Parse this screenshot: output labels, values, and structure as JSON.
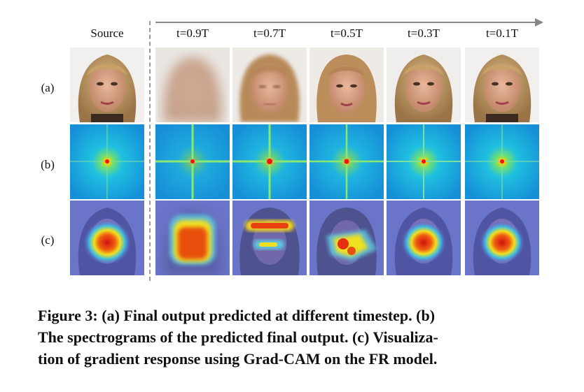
{
  "figure": {
    "column_labels": [
      "Source",
      "t=0.9T",
      "t=0.7T",
      "t=0.5T",
      "t=0.3T",
      "t=0.1T"
    ],
    "row_labels": [
      "(a)",
      "(b)",
      "(c)"
    ],
    "caption": "Figure 3: (a) Final output predicted at different timestep. (b) The spectrograms of the predicted final output. (c) Visualization of gradient response using Grad-CAM on the FR model.",
    "caption_lines": [
      "Figure 3: (a) Final output predicted at different timestep. (b)",
      "The spectrograms of the predicted final output. (c) Visualiza-",
      "tion of gradient response using Grad-CAM on the FR model."
    ]
  }
}
